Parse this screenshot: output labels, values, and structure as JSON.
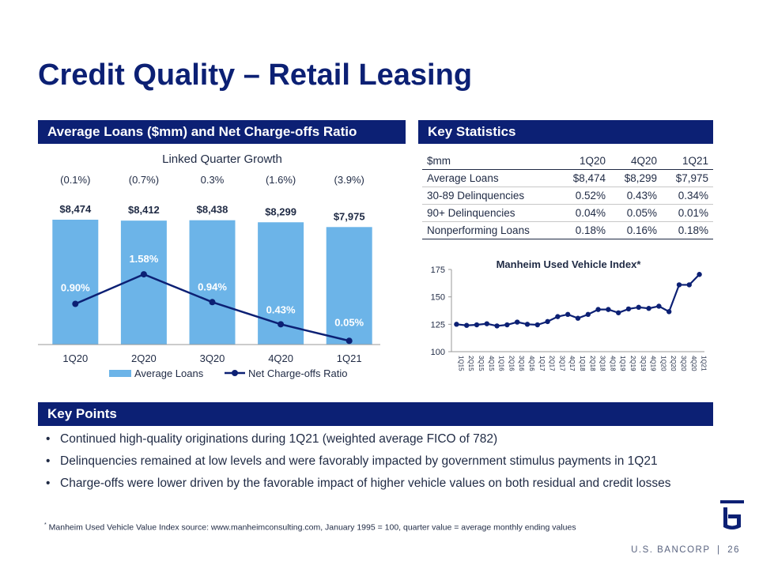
{
  "title": "Credit Quality – Retail Leasing",
  "left_section": {
    "header": "Average Loans ($mm) and Net Charge-offs Ratio"
  },
  "right_section": {
    "header": "Key Statistics"
  },
  "key_points": {
    "header": "Key Points",
    "items": [
      "Continued high-quality originations during 1Q21 (weighted average FICO of 782)",
      "Delinquencies remained at low levels and were favorably impacted by government stimulus payments in 1Q21",
      "Charge-offs were lower driven by the favorable impact of higher vehicle values on both residual and credit losses"
    ]
  },
  "stats_table": {
    "headers": [
      "$mm",
      "1Q20",
      "4Q20",
      "1Q21"
    ],
    "rows": [
      [
        "Average Loans",
        "$8,474",
        "$8,299",
        "$7,975"
      ],
      [
        "30-89 Delinquencies",
        "0.52%",
        "0.43%",
        "0.34%"
      ],
      [
        "90+ Delinquencies",
        "0.04%",
        "0.05%",
        "0.01%"
      ],
      [
        "Nonperforming Loans",
        "0.18%",
        "0.16%",
        "0.18%"
      ]
    ]
  },
  "footnote": {
    "marker": "*",
    "text": " Manheim Used Vehicle Value Index source: www.manheimconsulting.com, January 1995 = 100, quarter value = average monthly ending values"
  },
  "footer": {
    "brand": "U.S. BANCORP",
    "separator": "|",
    "page": "26"
  },
  "colors": {
    "navy": "#0c2074",
    "bar": "#6cb4e8",
    "text": "#1f2a44"
  },
  "chart_data": [
    {
      "type": "bar",
      "categories": [
        "1Q20",
        "2Q20",
        "3Q20",
        "4Q20",
        "1Q21"
      ],
      "linked_quarter_title": "Linked Quarter Growth",
      "linked_quarter_growth": [
        "(0.1%)",
        "(0.7%)",
        "0.3%",
        "(1.6%)",
        "(3.9%)"
      ],
      "series": [
        {
          "name": "Average Loans",
          "type": "bar",
          "values": [
            8474,
            8412,
            8438,
            8299,
            7975
          ],
          "labels": [
            "$8,474",
            "$8,412",
            "$8,438",
            "$8,299",
            "$7,975"
          ]
        },
        {
          "name": "Net Charge-offs Ratio",
          "type": "line",
          "values": [
            0.9,
            1.58,
            0.94,
            0.43,
            0.05
          ],
          "labels": [
            "0.90%",
            "1.58%",
            "0.94%",
            "0.43%",
            "0.05%"
          ]
        }
      ]
    },
    {
      "type": "line",
      "title": "Manheim Used Vehicle Index*",
      "x": [
        "1Q15",
        "2Q15",
        "3Q15",
        "4Q15",
        "1Q16",
        "2Q16",
        "3Q16",
        "4Q16",
        "1Q17",
        "2Q17",
        "3Q17",
        "4Q17",
        "1Q18",
        "2Q18",
        "3Q18",
        "4Q18",
        "1Q19",
        "2Q19",
        "3Q19",
        "4Q19",
        "1Q20",
        "2Q20",
        "3Q20",
        "4Q20",
        "1Q21"
      ],
      "values": [
        125,
        124,
        124.5,
        125.5,
        123.5,
        124.5,
        127,
        125,
        124.5,
        127.5,
        132,
        134,
        130.5,
        134,
        138.5,
        138.5,
        135.5,
        139,
        140.5,
        139.5,
        141.5,
        136.5,
        161,
        161,
        170.5
      ],
      "ylim": [
        100,
        175
      ],
      "yticks": [
        100,
        125,
        150,
        175
      ]
    }
  ]
}
